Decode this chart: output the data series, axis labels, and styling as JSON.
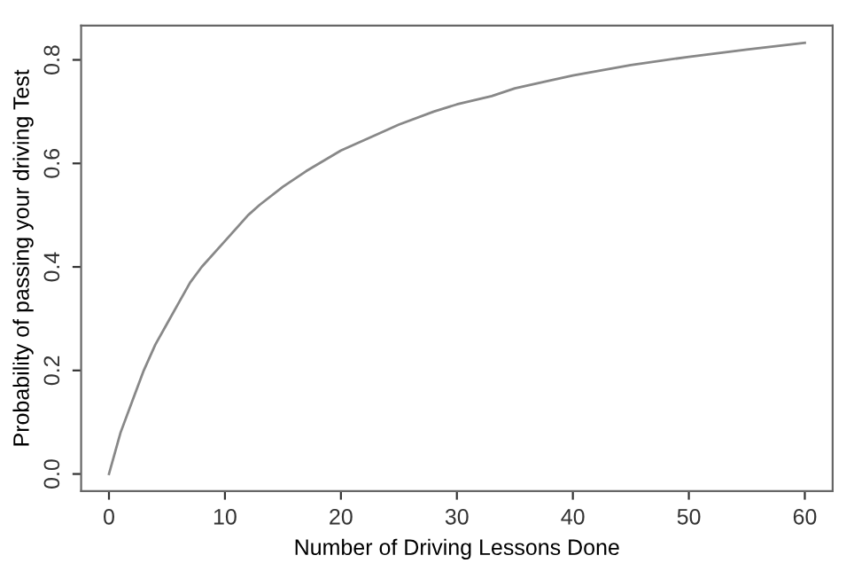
{
  "chart_data": {
    "type": "line",
    "xlabel": "Number of Driving Lessons Done",
    "ylabel": "Probability of passing your driving Test",
    "x": [
      0,
      1,
      2,
      3,
      4,
      5,
      6,
      7,
      8,
      10,
      12,
      13,
      15,
      17,
      20,
      23,
      25,
      28,
      30,
      33,
      35,
      38,
      40,
      45,
      50,
      55,
      60
    ],
    "series": [
      {
        "color": "#888888",
        "values": [
          0,
          0.08,
          0.14,
          0.2,
          0.25,
          0.29,
          0.33,
          0.37,
          0.4,
          0.45,
          0.5,
          0.52,
          0.555,
          0.585,
          0.625,
          0.655,
          0.675,
          0.7,
          0.714,
          0.73,
          0.745,
          0.76,
          0.77,
          0.79,
          0.806,
          0.82,
          0.833
        ]
      }
    ],
    "xlim": [
      -2.4,
      62.4
    ],
    "ylim": [
      -0.033,
      0.866
    ],
    "xticks": [
      0,
      10,
      20,
      30,
      40,
      50,
      60
    ],
    "yticks": [
      {
        "value": 0,
        "label": "0.0"
      },
      0.2,
      0.4,
      0.6,
      0.8
    ],
    "grid": false,
    "marker": "none",
    "line_style": "solid"
  }
}
